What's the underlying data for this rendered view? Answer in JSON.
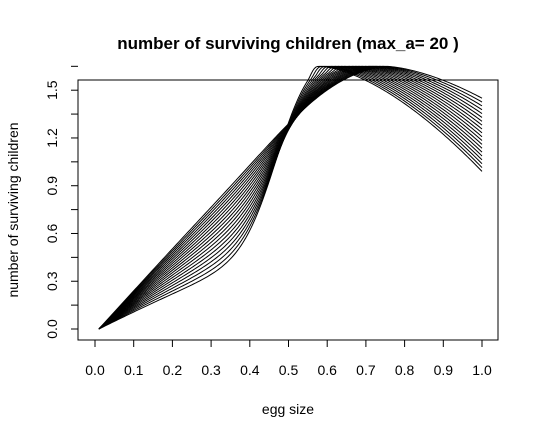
{
  "chart_data": {
    "type": "line",
    "title": "number of surviving children (max_a= 20 )",
    "xlabel": "egg size",
    "ylabel": "number of surviving children",
    "xlim": [
      0.0,
      1.0
    ],
    "ylim": [
      0.0,
      1.65
    ],
    "xticks": [
      "0.0",
      "0.1",
      "0.2",
      "0.3",
      "0.4",
      "0.5",
      "0.6",
      "0.7",
      "0.8",
      "0.9",
      "1.0"
    ],
    "yticks": [
      "0.0",
      "0.3",
      "0.6",
      "0.9",
      "1.2",
      "1.5"
    ],
    "ytick_values": [
      0.0,
      0.3,
      0.6,
      0.9,
      1.2,
      1.5
    ],
    "xtick_values": [
      0.0,
      0.1,
      0.2,
      0.3,
      0.4,
      0.5,
      0.6,
      0.7,
      0.8,
      0.9,
      1.0
    ],
    "x_start": 0.01,
    "x_end": 1.0,
    "series_count": 20,
    "series_params": {
      "first": {
        "knee": 0.47,
        "steepness": 0.35,
        "peak_x": 0.58,
        "peak_y": 1.65,
        "y_at_1": 0.99
      },
      "last": {
        "knee": 0.5,
        "steepness": 1.0,
        "peak_x": 0.75,
        "peak_y": 1.65,
        "y_at_1": 1.45
      }
    },
    "grid": false,
    "legend": "none"
  }
}
